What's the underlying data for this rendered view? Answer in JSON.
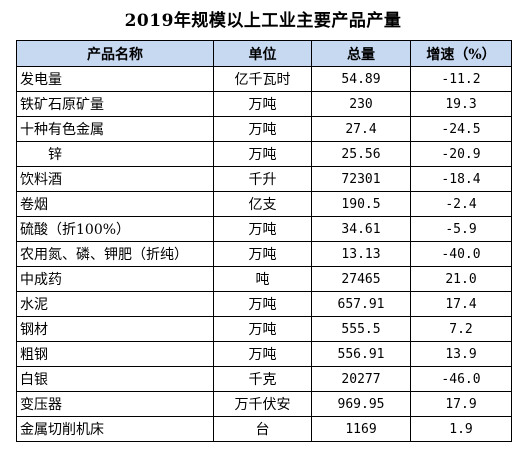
{
  "title": "2019年规模以上工业主要产品产量",
  "table": {
    "headers": [
      "产品名称",
      "单位",
      "总量",
      "增速（%）"
    ],
    "rows": [
      {
        "name": "发电量",
        "unit": "亿千瓦时",
        "total": "54.89",
        "growth": "-11.2"
      },
      {
        "name": "铁矿石原矿量",
        "unit": "万吨",
        "total": "230",
        "growth": "19.3"
      },
      {
        "name": "十种有色金属",
        "unit": "万吨",
        "total": "27.4",
        "growth": "-24.5"
      },
      {
        "name": "锌",
        "unit": "万吨",
        "total": "25.56",
        "growth": "-20.9"
      },
      {
        "name": "饮料酒",
        "unit": "千升",
        "total": "72301",
        "growth": "-18.4"
      },
      {
        "name": "卷烟",
        "unit": "亿支",
        "total": "190.5",
        "growth": "-2.4"
      },
      {
        "name": "硫酸（折100%）",
        "unit": "万吨",
        "total": "34.61",
        "growth": "-5.9"
      },
      {
        "name": "农用氮、磷、钾肥（折纯）",
        "unit": "万吨",
        "total": "13.13",
        "growth": "-40.0"
      },
      {
        "name": "中成药",
        "unit": "吨",
        "total": "27465",
        "growth": "21.0"
      },
      {
        "name": "水泥",
        "unit": "万吨",
        "total": "657.91",
        "growth": "17.4"
      },
      {
        "name": "钢材",
        "unit": "万吨",
        "total": "555.5",
        "growth": "7.2"
      },
      {
        "name": "粗钢",
        "unit": "万吨",
        "total": "556.91",
        "growth": "13.9"
      },
      {
        "name": "白银",
        "unit": "千克",
        "total": "20277",
        "growth": "-46.0"
      },
      {
        "name": "变压器",
        "unit": "万千伏安",
        "total": "969.95",
        "growth": "17.9"
      },
      {
        "name": "金属切削机床",
        "unit": "台",
        "total": "1169",
        "growth": "1.9"
      }
    ]
  }
}
